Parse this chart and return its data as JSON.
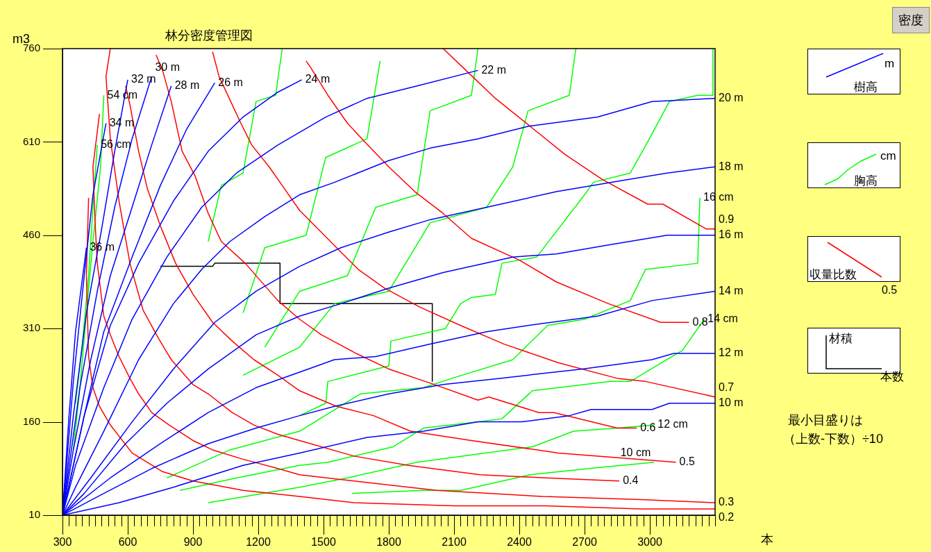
{
  "chart_data": {
    "type": "line",
    "title": "林分密度管理図",
    "xlabel": "本",
    "ylabel": "m3",
    "marker": "none",
    "xlim": [
      300,
      3300
    ],
    "ylim": [
      10,
      760
    ],
    "xticks": [
      300,
      {
        "value": 330,
        "label": null
      },
      {
        "value": 360,
        "label": null
      },
      {
        "value": 390,
        "label": null
      },
      {
        "value": 420,
        "label": null
      },
      {
        "value": 450,
        "label": null
      },
      {
        "value": 480,
        "label": null
      },
      {
        "value": 510,
        "label": null
      },
      {
        "value": 540,
        "label": null
      },
      {
        "value": 570,
        "label": null
      },
      600,
      {
        "value": 630,
        "label": null
      },
      {
        "value": 660,
        "label": null
      },
      {
        "value": 690,
        "label": null
      },
      {
        "value": 720,
        "label": null
      },
      {
        "value": 750,
        "label": null
      },
      {
        "value": 780,
        "label": null
      },
      {
        "value": 810,
        "label": null
      },
      {
        "value": 840,
        "label": null
      },
      {
        "value": 870,
        "label": null
      },
      900,
      {
        "value": 930,
        "label": null
      },
      {
        "value": 960,
        "label": null
      },
      {
        "value": 990,
        "label": null
      },
      {
        "value": 1020,
        "label": null
      },
      {
        "value": 1050,
        "label": null
      },
      {
        "value": 1080,
        "label": null
      },
      {
        "value": 1110,
        "label": null
      },
      {
        "value": 1140,
        "label": null
      },
      {
        "value": 1170,
        "label": null
      },
      1200,
      {
        "value": 1230,
        "label": null
      },
      {
        "value": 1260,
        "label": null
      },
      {
        "value": 1290,
        "label": null
      },
      {
        "value": 1320,
        "label": null
      },
      {
        "value": 1350,
        "label": null
      },
      {
        "value": 1380,
        "label": null
      },
      {
        "value": 1410,
        "label": null
      },
      {
        "value": 1440,
        "label": null
      },
      {
        "value": 1470,
        "label": null
      },
      1500,
      {
        "value": 1530,
        "label": null
      },
      {
        "value": 1560,
        "label": null
      },
      {
        "value": 1590,
        "label": null
      },
      {
        "value": 1620,
        "label": null
      },
      {
        "value": 1650,
        "label": null
      },
      {
        "value": 1680,
        "label": null
      },
      {
        "value": 1710,
        "label": null
      },
      {
        "value": 1740,
        "label": null
      },
      {
        "value": 1770,
        "label": null
      },
      1800,
      {
        "value": 1830,
        "label": null
      },
      {
        "value": 1860,
        "label": null
      },
      {
        "value": 1890,
        "label": null
      },
      {
        "value": 1920,
        "label": null
      },
      {
        "value": 1950,
        "label": null
      },
      {
        "value": 1980,
        "label": null
      },
      {
        "value": 2010,
        "label": null
      },
      {
        "value": 2040,
        "label": null
      },
      {
        "value": 2070,
        "label": null
      },
      2100,
      {
        "value": 2130,
        "label": null
      },
      {
        "value": 2160,
        "label": null
      },
      {
        "value": 2190,
        "label": null
      },
      {
        "value": 2220,
        "label": null
      },
      {
        "value": 2250,
        "label": null
      },
      {
        "value": 2280,
        "label": null
      },
      {
        "value": 2310,
        "label": null
      },
      {
        "value": 2340,
        "label": null
      },
      {
        "value": 2370,
        "label": null
      },
      2400,
      {
        "value": 2430,
        "label": null
      },
      {
        "value": 2460,
        "label": null
      },
      {
        "value": 2490,
        "label": null
      },
      {
        "value": 2520,
        "label": null
      },
      {
        "value": 2550,
        "label": null
      },
      {
        "value": 2580,
        "label": null
      },
      {
        "value": 2610,
        "label": null
      },
      {
        "value": 2640,
        "label": null
      },
      {
        "value": 2670,
        "label": null
      },
      2700,
      {
        "value": 2730,
        "label": null
      },
      {
        "value": 2760,
        "label": null
      },
      {
        "value": 2790,
        "label": null
      },
      {
        "value": 2820,
        "label": null
      },
      {
        "value": 2850,
        "label": null
      },
      {
        "value": 2880,
        "label": null
      },
      {
        "value": 2910,
        "label": null
      },
      {
        "value": 2940,
        "label": null
      },
      {
        "value": 2970,
        "label": null
      },
      3000,
      {
        "value": 3030,
        "label": null
      },
      {
        "value": 3060,
        "label": null
      },
      {
        "value": 3090,
        "label": null
      },
      {
        "value": 3120,
        "label": null
      },
      {
        "value": 3150,
        "label": null
      },
      {
        "value": 3180,
        "label": null
      },
      {
        "value": 3210,
        "label": null
      },
      {
        "value": 3240,
        "label": null
      },
      {
        "value": 3270,
        "label": null
      },
      {
        "value": 3300,
        "label": null
      }
    ],
    "yticks": [
      10,
      160,
      310,
      460,
      610,
      760
    ],
    "series": [
      {
        "name": "20 m",
        "color": "#0000ff",
        "x": [
          300,
          360,
          490,
          650,
          810,
          940,
          1070,
          1230,
          1390,
          1550,
          1800,
          1990,
          2210,
          2440,
          2760,
          3010,
          3300
        ],
        "values": [
          10,
          55,
          145,
          260,
          350,
          405,
          450,
          490,
          525,
          545,
          580,
          600,
          615,
          635,
          650,
          675,
          680
        ]
      },
      {
        "name": "18 m",
        "color": "#0000ff",
        "x": [
          300,
          430,
          620,
          810,
          1000,
          1190,
          1390,
          1580,
          1800,
          1990,
          2250,
          2570,
          2820,
          3080,
          3300
        ],
        "values": [
          10,
          70,
          160,
          245,
          320,
          370,
          410,
          440,
          465,
          485,
          505,
          530,
          545,
          560,
          570
        ]
      },
      {
        "name": "16 m",
        "color": "#0000ff",
        "x": [
          300,
          400,
          590,
          780,
          970,
          1190,
          1390,
          1580,
          1800,
          2050,
          2370,
          2570,
          2820,
          3080,
          3300
        ],
        "values": [
          10,
          45,
          125,
          190,
          245,
          300,
          330,
          350,
          375,
          400,
          425,
          430,
          445,
          460,
          460
        ]
      },
      {
        "name": "14 m",
        "color": "#0000ff",
        "x": [
          300,
          520,
          750,
          970,
          1190,
          1390,
          1550,
          1740,
          1990,
          2250,
          2440,
          2760,
          3010,
          3300
        ],
        "values": [
          10,
          70,
          125,
          175,
          215,
          240,
          260,
          265,
          285,
          305,
          315,
          330,
          355,
          370
        ]
      },
      {
        "name": "12 m",
        "color": "#0000ff",
        "x": [
          300,
          490,
          710,
          970,
          1190,
          1390,
          1550,
          1800,
          2050,
          2310,
          2690,
          3010,
          3110,
          3300
        ],
        "values": [
          10,
          45,
          85,
          125,
          150,
          170,
          185,
          205,
          220,
          230,
          245,
          260,
          270,
          270
        ]
      },
      {
        "name": "10 m",
        "color": "#0000ff",
        "x": [
          300,
          560,
          810,
          1130,
          1390,
          1700,
          1960,
          2210,
          2410,
          2630,
          2730,
          3010,
          3090,
          3300
        ],
        "values": [
          10,
          30,
          55,
          90,
          110,
          135,
          145,
          160,
          160,
          170,
          180,
          180,
          190,
          190
        ]
      },
      {
        "name": "22 m",
        "color": "#0000ff",
        "x": [
          300,
          360,
          490,
          620,
          780,
          940,
          1100,
          1290,
          1510,
          1700,
          1930,
          2210
        ],
        "values": [
          10,
          90,
          215,
          325,
          425,
          505,
          560,
          605,
          650,
          680,
          700,
          725
        ]
      },
      {
        "name": "24 m",
        "color": "#0000ff",
        "x": [
          300,
          400,
          520,
          650,
          810,
          970,
          1130,
          1290,
          1400
        ],
        "values": [
          10,
          170,
          315,
          415,
          515,
          595,
          650,
          690,
          710
        ]
      },
      {
        "name": "26 m",
        "color": "#0000ff",
        "x": [
          300,
          400,
          490,
          620,
          750,
          870,
          1000
        ],
        "values": [
          10,
          170,
          305,
          425,
          540,
          630,
          705
        ]
      },
      {
        "name": "28 m",
        "color": "#0000ff",
        "x": [
          300,
          350,
          430,
          520,
          620,
          710,
          800
        ],
        "values": [
          10,
          115,
          260,
          395,
          505,
          605,
          700
        ]
      },
      {
        "name": "30 m",
        "color": "#0000ff",
        "x": [
          300,
          380,
          460,
          540,
          620,
          710
        ],
        "values": [
          10,
          215,
          370,
          505,
          615,
          715
        ]
      },
      {
        "name": "32 m",
        "color": "#0000ff",
        "x": [
          300,
          350,
          410,
          480,
          540,
          600
        ],
        "values": [
          10,
          170,
          335,
          470,
          595,
          710
        ]
      },
      {
        "name": "34 m",
        "color": "#0000ff",
        "x": [
          300,
          350,
          400,
          440,
          500
        ],
        "values": [
          10,
          225,
          395,
          525,
          640
        ]
      },
      {
        "name": "36 m",
        "color": "#0000ff",
        "x": [
          300,
          330,
          360,
          410
        ],
        "values": [
          10,
          170,
          305,
          440
        ]
      },
      {
        "name": "0.9",
        "color": "#ff0000",
        "x": [
          2050,
          2170,
          2290,
          2450,
          2610,
          2780,
          2990,
          3060,
          3260,
          3300
        ],
        "values": [
          760,
          720,
          680,
          635,
          590,
          550,
          510,
          510,
          470,
          470
        ]
      },
      {
        "name": "0.8",
        "color": "#ff0000",
        "x": [
          1420,
          1440,
          1520,
          1610,
          1690,
          1800,
          1920,
          2050,
          2180,
          2400,
          2570,
          2810,
          3050,
          3180
        ],
        "values": [
          740,
          730,
          685,
          640,
          610,
          570,
          530,
          495,
          455,
          420,
          385,
          350,
          320,
          320
        ]
      },
      {
        "name": "0.7",
        "color": "#ff0000",
        "x": [
          990,
          1020,
          1120,
          1170,
          1250,
          1310,
          1390,
          1560,
          1660,
          1780,
          1940,
          2130,
          2330,
          2580,
          2850,
          2980,
          3300
        ],
        "values": [
          755,
          715,
          640,
          605,
          570,
          540,
          500,
          440,
          405,
          375,
          345,
          315,
          285,
          255,
          230,
          225,
          200
        ]
      },
      {
        "name": "0.6",
        "color": "#ff0000",
        "x": [
          730,
          760,
          800,
          850,
          910,
          970,
          1030,
          1140,
          1290,
          1390,
          1490,
          1650,
          1800,
          2010,
          2210,
          2260,
          2490,
          2560,
          2850,
          2940
        ],
        "values": [
          750,
          725,
          675,
          595,
          555,
          495,
          450,
          415,
          355,
          325,
          300,
          270,
          245,
          220,
          195,
          200,
          175,
          175,
          150,
          150
        ]
      },
      {
        "name": "0.5",
        "color": "#ff0000",
        "x": [
          590,
          610,
          650,
          690,
          750,
          820,
          900,
          990,
          1080,
          1180,
          1290,
          1390,
          1560,
          1730,
          1900,
          2180,
          2580,
          3120
        ],
        "values": [
          700,
          670,
          595,
          535,
          475,
          415,
          365,
          320,
          290,
          260,
          235,
          210,
          185,
          170,
          145,
          130,
          110,
          95
        ]
      },
      {
        "name": "0.4",
        "color": "#ff0000",
        "x": [
          520,
          500,
          520,
          560,
          610,
          670,
          740,
          800,
          900,
          970,
          1080,
          1180,
          1290,
          1390,
          1640,
          1890,
          2220,
          2520,
          2860
        ],
        "values": [
          760,
          715,
          615,
          515,
          415,
          340,
          295,
          260,
          220,
          205,
          175,
          155,
          140,
          130,
          105,
          90,
          75,
          70,
          65
        ]
      },
      {
        "name": "0.3",
        "color": "#ff0000",
        "x": [
          470,
          440,
          450,
          460,
          490,
          520,
          560,
          610,
          650,
          710,
          790,
          900,
          990,
          1130,
          1290,
          1390,
          1640,
          2020,
          2510,
          2960,
          3300
        ],
        "values": [
          655,
          570,
          480,
          415,
          330,
          300,
          265,
          230,
          205,
          175,
          155,
          130,
          115,
          100,
          85,
          75,
          65,
          50,
          40,
          35,
          30
        ]
      },
      {
        "name": "0.2",
        "color": "#ff0000",
        "x": [
          420,
          410,
          420,
          440,
          470,
          520,
          620,
          760,
          900,
          1130,
          1390,
          1640,
          2100,
          2520,
          2960,
          3300
        ],
        "values": [
          520,
          395,
          265,
          215,
          185,
          155,
          110,
          80,
          65,
          50,
          40,
          30,
          25,
          25,
          20,
          20
        ]
      },
      {
        "name": "16 cm",
        "color": "#00ff00",
        "x": [
          780,
          1070,
          1390,
          1670,
          1960,
          2090,
          2370,
          2530,
          2700,
          2910,
          2980,
          3220,
          3230
        ],
        "values": [
          70,
          115,
          145,
          205,
          215,
          230,
          260,
          315,
          325,
          355,
          405,
          415,
          520
        ]
      },
      {
        "name": "14 cm",
        "color": "#00ff00",
        "x": [
          840,
          1100,
          1390,
          1520,
          1820,
          1960,
          2210,
          2320,
          2460,
          2820,
          2910,
          3150,
          3250
        ],
        "values": [
          50,
          70,
          90,
          95,
          120,
          150,
          160,
          165,
          210,
          225,
          225,
          275,
          325
        ]
      },
      {
        "name": "12 cm",
        "color": "#00ff00",
        "x": [
          970,
          1390,
          1610,
          1930,
          2460,
          2650,
          2850,
          3020
        ],
        "values": [
          30,
          55,
          70,
          95,
          120,
          145,
          150,
          155
        ]
      },
      {
        "name": "10 cm",
        "color": "#00ff00",
        "x": [
          1630,
          1960,
          2130,
          2450,
          2720,
          3020
        ],
        "values": [
          45,
          50,
          50,
          75,
          85,
          95
        ]
      },
      {
        "color": "#00ff00",
        "x": [
          1390,
          1510,
          1520,
          1800,
          1810,
          2060,
          2130,
          2180,
          2290,
          2320,
          2480,
          2700,
          2740,
          2910,
          2990,
          3090,
          3220,
          3290,
          3290
        ],
        "values": [
          170,
          190,
          225,
          250,
          290,
          310,
          350,
          360,
          365,
          415,
          425,
          525,
          545,
          560,
          610,
          675,
          685,
          685,
          760
        ]
      },
      {
        "color": "#00ff00",
        "x": [
          1130,
          1390,
          1550,
          1800,
          1990,
          2250,
          2370,
          2440,
          2630,
          2660
        ],
        "values": [
          235,
          280,
          350,
          370,
          480,
          505,
          570,
          660,
          685,
          760
        ]
      },
      {
        "color": "#00ff00",
        "x": [
          1230,
          1390,
          1610,
          1740,
          1930,
          1990,
          2180,
          2210
        ],
        "values": [
          280,
          370,
          395,
          505,
          525,
          660,
          685,
          760
        ]
      },
      {
        "color": "#00ff00",
        "x": [
          1130,
          1230,
          1420,
          1510,
          1700,
          1760
        ],
        "values": [
          335,
          440,
          460,
          585,
          615,
          740
        ]
      },
      {
        "color": "#00ff00",
        "x": [
          970,
          1030,
          1130,
          1190,
          1280,
          1310
        ],
        "values": [
          450,
          540,
          560,
          675,
          685,
          760
        ]
      },
      {
        "name": "54 cm",
        "color": "#00ff00",
        "x": [
          350,
          380,
          410,
          440,
          475,
          490
        ],
        "values": [
          115,
          215,
          335,
          450,
          570,
          685
        ]
      },
      {
        "name": "56 cm",
        "color": "#00ff00",
        "x": [
          360,
          390,
          420,
          440,
          460
        ],
        "values": [
          190,
          280,
          395,
          505,
          605
        ]
      },
      {
        "color": "#000000",
        "x": [
          750,
          990,
          1000,
          1300,
          1300,
          2000,
          2000
        ],
        "values": [
          410,
          410,
          415,
          415,
          350,
          350,
          225
        ]
      }
    ],
    "annotations": [
      "m",
      "樹高",
      "cm",
      "胸高",
      "収量比数",
      "0.5",
      "材積",
      "本数",
      "最小目盛りは",
      "（上数-下数）÷10",
      "密度"
    ]
  }
}
